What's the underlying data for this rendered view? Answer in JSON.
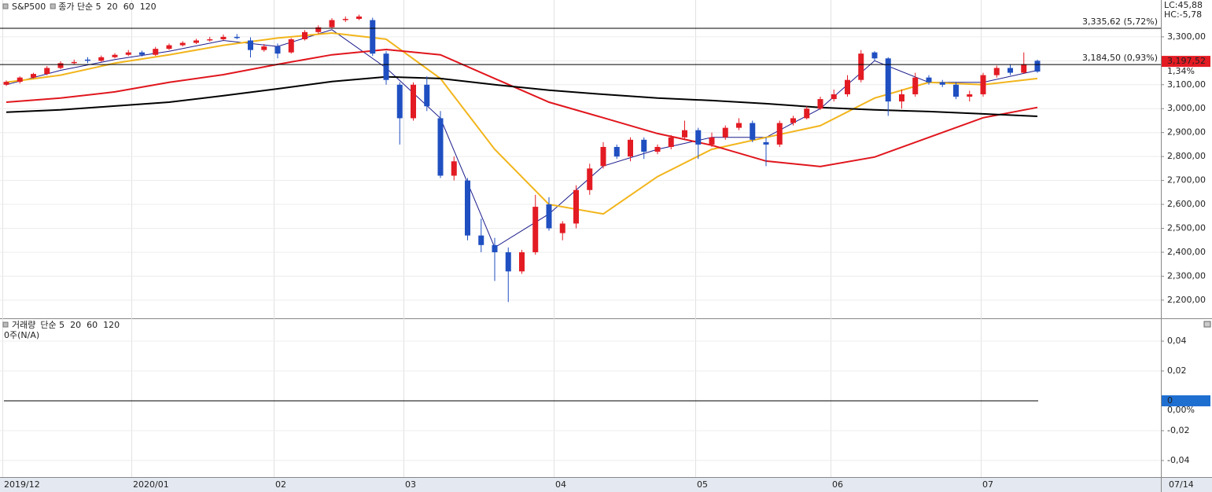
{
  "chart_data": [
    {
      "type": "candlestick",
      "title": "S&P500",
      "open": [
        3100,
        3112,
        3130,
        3145,
        3170,
        3190,
        3205,
        3200,
        3215,
        3225,
        3235,
        3225,
        3250,
        3265,
        3275,
        3285,
        3290,
        3300,
        3285,
        3245,
        3260,
        3235,
        3290,
        3320,
        3340,
        3370,
        3375,
        3370,
        3230,
        3100,
        2960,
        3100,
        2960,
        2720,
        2700,
        2470,
        2430,
        2400,
        2320,
        2400,
        2600,
        2480,
        2520,
        2660,
        2760,
        2840,
        2800,
        2870,
        2820,
        2840,
        2880,
        2910,
        2850,
        2880,
        2920,
        2940,
        2860,
        2850,
        2940,
        2960,
        3000,
        3040,
        3060,
        3120,
        3235,
        3210,
        3030,
        3060,
        3130,
        3110,
        3100,
        3050,
        3060,
        3140,
        3170,
        3150,
        3200
      ],
      "high": [
        3118,
        3135,
        3150,
        3178,
        3198,
        3205,
        3215,
        3222,
        3232,
        3245,
        3242,
        3258,
        3272,
        3282,
        3292,
        3300,
        3310,
        3312,
        3298,
        3270,
        3272,
        3295,
        3328,
        3348,
        3378,
        3385,
        3393,
        3380,
        3240,
        3110,
        3110,
        3135,
        2990,
        2800,
        2710,
        2540,
        2460,
        2420,
        2410,
        2640,
        2630,
        2530,
        2680,
        2770,
        2860,
        2850,
        2880,
        2880,
        2850,
        2890,
        2950,
        2920,
        2900,
        2930,
        2960,
        2950,
        2880,
        2950,
        2970,
        3010,
        3050,
        3080,
        3140,
        3245,
        3240,
        3215,
        3080,
        3150,
        3140,
        3120,
        3110,
        3075,
        3150,
        3180,
        3185,
        3235,
        3205
      ],
      "low": [
        3095,
        3105,
        3125,
        3140,
        3165,
        3185,
        3190,
        3195,
        3210,
        3220,
        3218,
        3220,
        3245,
        3260,
        3270,
        3280,
        3285,
        3290,
        3214,
        3238,
        3210,
        3230,
        3285,
        3312,
        3335,
        3362,
        3370,
        3220,
        3100,
        2850,
        2950,
        2990,
        2710,
        2700,
        2450,
        2400,
        2280,
        2192,
        2310,
        2390,
        2490,
        2450,
        2500,
        2640,
        2750,
        2790,
        2780,
        2790,
        2810,
        2830,
        2870,
        2790,
        2840,
        2870,
        2910,
        2860,
        2760,
        2840,
        2930,
        2955,
        2995,
        3030,
        3050,
        3110,
        3200,
        2970,
        3000,
        3050,
        3100,
        3090,
        3040,
        3030,
        3050,
        3130,
        3140,
        3145,
        3150
      ],
      "close": [
        3112,
        3130,
        3145,
        3170,
        3190,
        3195,
        3200,
        3215,
        3225,
        3235,
        3225,
        3250,
        3265,
        3275,
        3285,
        3290,
        3300,
        3295,
        3245,
        3260,
        3230,
        3290,
        3320,
        3340,
        3370,
        3375,
        3385,
        3230,
        3120,
        2960,
        3100,
        3010,
        2720,
        2780,
        2470,
        2430,
        2400,
        2320,
        2400,
        2590,
        2500,
        2520,
        2660,
        2750,
        2840,
        2800,
        2870,
        2820,
        2840,
        2880,
        2910,
        2850,
        2880,
        2920,
        2940,
        2870,
        2850,
        2940,
        2960,
        3000,
        3040,
        3060,
        3120,
        3230,
        3210,
        3030,
        3060,
        3130,
        3110,
        3100,
        3050,
        3060,
        3140,
        3170,
        3150,
        3185,
        3155
      ],
      "up_color": "#e31b23",
      "down_color": "#1f4fc1",
      "series": [
        {
          "name": "종가 단순 5",
          "color": "#1a1a8c",
          "values": [
            3100,
            3160,
            3205,
            3240,
            3285,
            3260,
            3330,
            3170,
            2960,
            2420,
            2560,
            2760,
            2830,
            2880,
            2880,
            3000,
            3200,
            3110,
            3110,
            3160
          ]
        },
        {
          "name": "20",
          "color": "#f2b51c",
          "values": [
            3110,
            3140,
            3190,
            3225,
            3265,
            3295,
            3316,
            3290,
            3126,
            2830,
            2600,
            2560,
            2716,
            2830,
            2880,
            2929,
            3044,
            3110,
            3100,
            3126
          ]
        },
        {
          "name": "60",
          "color": "#e0161d",
          "values": [
            3027,
            3044,
            3070,
            3110,
            3142,
            3185,
            3225,
            3247,
            3225,
            3126,
            3027,
            2962,
            2896,
            2847,
            2781,
            2758,
            2798,
            2880,
            2962,
            3005
          ]
        },
        {
          "name": "120",
          "color": "#000000",
          "values": [
            2985,
            2995,
            3011,
            3027,
            3054,
            3083,
            3113,
            3133,
            3126,
            3100,
            3077,
            3060,
            3044,
            3034,
            3021,
            3005,
            2995,
            2988,
            2978,
            2968
          ]
        }
      ],
      "ylim": [
        2124,
        3454
      ],
      "yticks": [
        {
          "value": 2200,
          "label": "2,200,00"
        },
        {
          "value": 2300,
          "label": "2,300,00"
        },
        {
          "value": 2400,
          "label": "2,400,00"
        },
        {
          "value": 2500,
          "label": "2,500,00"
        },
        {
          "value": 2600,
          "label": "2,600,00"
        },
        {
          "value": 2700,
          "label": "2,700,00"
        },
        {
          "value": 2800,
          "label": "2,800,00"
        },
        {
          "value": 2900,
          "label": "2,900,00"
        },
        {
          "value": 3000,
          "label": "3,000,00"
        },
        {
          "value": 3100,
          "label": "3,100,00"
        },
        {
          "value": 3200,
          "label": "3,200,00"
        },
        {
          "value": 3300,
          "label": "3,300,00"
        }
      ],
      "price_levels": [
        {
          "value": 3335.62,
          "label": "3,335,62 (5,72%)"
        },
        {
          "value": 3184.5,
          "label": "3,184,50 (0,93%)"
        }
      ],
      "last_price": {
        "value": 3197.52,
        "label": "3,197,52"
      },
      "last_change": "1,34%",
      "lc": "LC:45,88",
      "hc": "HC:-5,78",
      "x_labels": [
        "2019/12",
        "2020/01",
        "02",
        "03",
        "04",
        "05",
        "06",
        "07"
      ],
      "end_label": "07/14"
    },
    {
      "type": "volume",
      "title": "거래량",
      "legend": [
        {
          "name": "단순 5",
          "color": "#1a1a8c"
        },
        {
          "name": "20",
          "color": "#e0161d"
        },
        {
          "name": "60",
          "color": "#1b8a2a"
        },
        {
          "name": "120",
          "color": "#000000"
        }
      ],
      "status": "0주(N/A)",
      "ylim": [
        -0.0511,
        0.0553
      ],
      "yticks": [
        {
          "value": 0.04,
          "label": "0,04"
        },
        {
          "value": 0.02,
          "label": "0,02"
        },
        0,
        {
          "value": -0.02,
          "label": "-0,02"
        },
        {
          "value": -0.04,
          "label": "-0,04"
        }
      ],
      "zero_change": "0,00%"
    }
  ]
}
